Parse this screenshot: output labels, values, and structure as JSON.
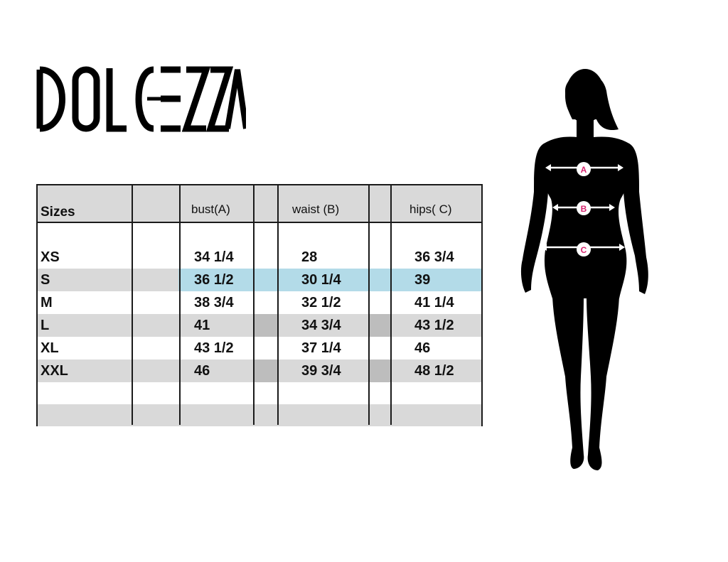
{
  "brand": {
    "logo_text": "DOLCEZZA"
  },
  "table": {
    "headers": {
      "sizes": "Sizes",
      "bust": "bust(A)",
      "waist": "waist (B)",
      "hips": "hips( C)"
    },
    "rows": [
      {
        "size": "XS",
        "bust": "34 1/4",
        "waist": "28",
        "hips": "36 3/4"
      },
      {
        "size": "S",
        "bust": "36 1/2",
        "waist": "30 1/4",
        "hips": "39"
      },
      {
        "size": "M",
        "bust": "38 3/4",
        "waist": "32 1/2",
        "hips": "41 1/4"
      },
      {
        "size": "L",
        "bust": "41",
        "waist": "34 3/4",
        "hips": "43 1/2"
      },
      {
        "size": "XL",
        "bust": "43 1/2",
        "waist": "37 1/4",
        "hips": "46"
      },
      {
        "size": "XXL",
        "bust": "46",
        "waist": "39 3/4",
        "hips": "48 1/2"
      }
    ]
  },
  "figure": {
    "markers": {
      "a": "A",
      "b": "B",
      "c": "C"
    },
    "marker_color": "#d6246e",
    "silhouette_color": "#000000"
  },
  "colors": {
    "row_gray": "#d9d9d9",
    "row_highlight": "#b3dbe8"
  }
}
